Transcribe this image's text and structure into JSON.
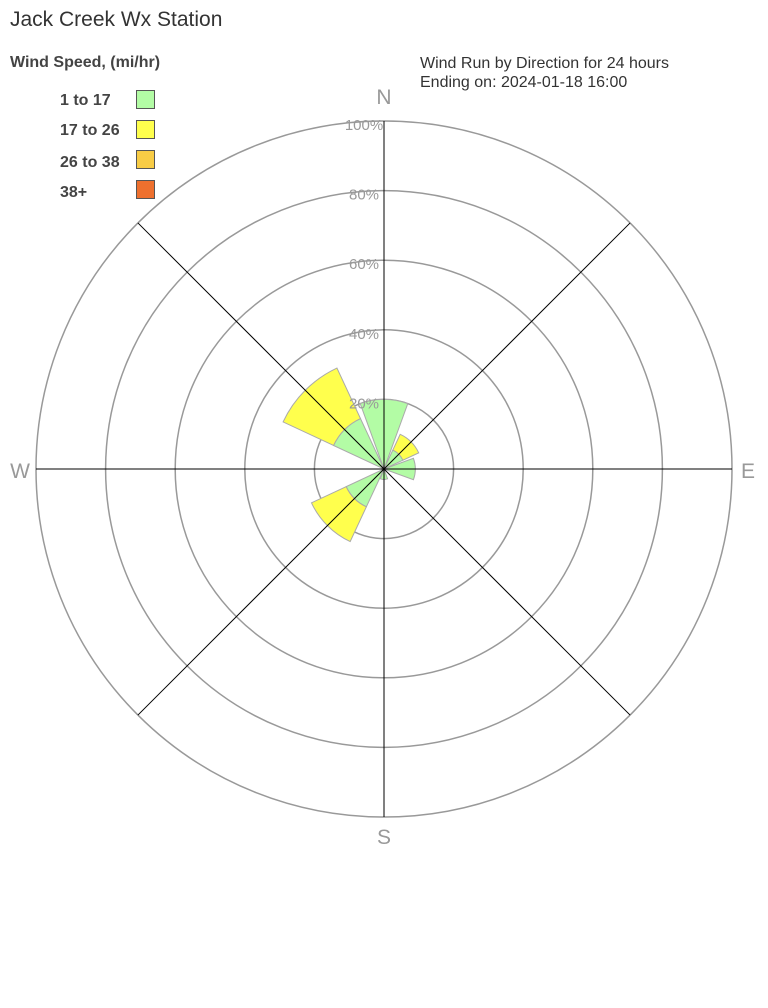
{
  "title": "Jack Creek Wx Station",
  "subtitle_line1": "Wind Run by Direction for 24 hours",
  "subtitle_line2": "Ending on: 2024-01-18 16:00",
  "chart_data": {
    "type": "wind-rose",
    "legend_title": "Wind Speed, (mi/hr)",
    "legend_placement": "top-left",
    "bins": [
      {
        "name": "1 to 17",
        "color": "#b3fca5"
      },
      {
        "name": "17 to 26",
        "color": "#ffff4d"
      },
      {
        "name": "26 to 38",
        "color": "#f8cc45"
      },
      {
        "name": "38+",
        "color": "#ee702e"
      }
    ],
    "directions": [
      "N",
      "NE",
      "E",
      "SE",
      "S",
      "SW",
      "W",
      "NW"
    ],
    "direction_labels": [
      "N",
      "E",
      "S",
      "W"
    ],
    "values_percent": {
      "N": [
        20,
        0,
        0,
        0
      ],
      "NE": [
        6,
        5,
        0,
        0
      ],
      "E": [
        9,
        0,
        0,
        0
      ],
      "SE": [
        0,
        0,
        0,
        0
      ],
      "S": [
        3,
        0,
        0,
        0
      ],
      "SW": [
        12,
        11,
        0,
        0
      ],
      "W": [
        0,
        0,
        0,
        0
      ],
      "NW": [
        16,
        16,
        0,
        0
      ]
    },
    "radial_ticks": [
      "20%",
      "40%",
      "60%",
      "80%",
      "100%"
    ],
    "rlim": [
      0,
      100
    ]
  }
}
